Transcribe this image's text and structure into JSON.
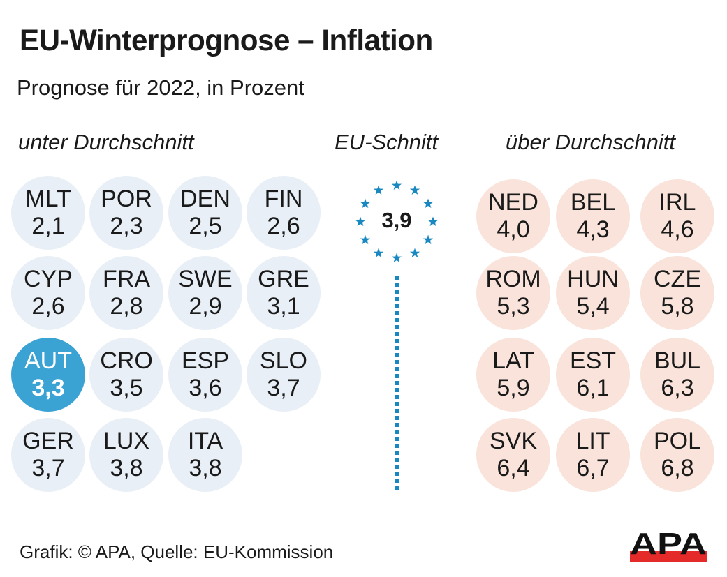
{
  "header": {
    "title": "EU-Winterprognose – Inflation",
    "subtitle": "Prognose für 2022, in Prozent"
  },
  "sections": {
    "below": "unter Durchschnitt",
    "eu": "EU-Schnitt",
    "above": "über Durchschnitt"
  },
  "eu_average": {
    "value": "3,9",
    "icon": "eu-stars-ring-icon"
  },
  "below": [
    {
      "code": "MLT",
      "value": "2,1"
    },
    {
      "code": "POR",
      "value": "2,3"
    },
    {
      "code": "DEN",
      "value": "2,5"
    },
    {
      "code": "FIN",
      "value": "2,6"
    },
    {
      "code": "CYP",
      "value": "2,6"
    },
    {
      "code": "FRA",
      "value": "2,8"
    },
    {
      "code": "SWE",
      "value": "2,9"
    },
    {
      "code": "GRE",
      "value": "3,1"
    },
    {
      "code": "AUT",
      "value": "3,3"
    },
    {
      "code": "CRO",
      "value": "3,5"
    },
    {
      "code": "ESP",
      "value": "3,6"
    },
    {
      "code": "SLO",
      "value": "3,7"
    },
    {
      "code": "GER",
      "value": "3,7"
    },
    {
      "code": "LUX",
      "value": "3,8"
    },
    {
      "code": "ITA",
      "value": "3,8"
    }
  ],
  "above": [
    {
      "code": "NED",
      "value": "4,0"
    },
    {
      "code": "BEL",
      "value": "4,3"
    },
    {
      "code": "IRL",
      "value": "4,6"
    },
    {
      "code": "ROM",
      "value": "5,3"
    },
    {
      "code": "HUN",
      "value": "5,4"
    },
    {
      "code": "CZE",
      "value": "5,8"
    },
    {
      "code": "LAT",
      "value": "5,9"
    },
    {
      "code": "EST",
      "value": "6,1"
    },
    {
      "code": "BUL",
      "value": "6,3"
    },
    {
      "code": "SVK",
      "value": "6,4"
    },
    {
      "code": "LIT",
      "value": "6,7"
    },
    {
      "code": "POL",
      "value": "6,8"
    }
  ],
  "footer": {
    "credit": "Grafik: © APA, Quelle: EU-Kommission",
    "logo_text": "APA"
  },
  "colors": {
    "below_circle": "#e8eff6",
    "above_circle": "#f9e3da",
    "highlight_circle": "#3aa3d4",
    "eu_blue": "#1a88c0",
    "logo_red": "#e52a2a"
  },
  "chart_data": {
    "type": "table",
    "title": "EU-Winterprognose – Inflation",
    "subtitle": "Prognose für 2022, in Prozent",
    "unit": "%",
    "eu_average": 3.9,
    "highlighted": "AUT",
    "categories": [
      "MLT",
      "POR",
      "DEN",
      "FIN",
      "CYP",
      "FRA",
      "SWE",
      "GRE",
      "AUT",
      "CRO",
      "ESP",
      "SLO",
      "GER",
      "LUX",
      "ITA",
      "NED",
      "BEL",
      "IRL",
      "ROM",
      "HUN",
      "CZE",
      "LAT",
      "EST",
      "BUL",
      "SVK",
      "LIT",
      "POL"
    ],
    "values": [
      2.1,
      2.3,
      2.5,
      2.6,
      2.6,
      2.8,
      2.9,
      3.1,
      3.3,
      3.5,
      3.6,
      3.7,
      3.7,
      3.8,
      3.8,
      4.0,
      4.3,
      4.6,
      5.3,
      5.4,
      5.8,
      5.9,
      6.1,
      6.3,
      6.4,
      6.7,
      6.8
    ],
    "groups": {
      "unter Durchschnitt": [
        "MLT",
        "POR",
        "DEN",
        "FIN",
        "CYP",
        "FRA",
        "SWE",
        "GRE",
        "AUT",
        "CRO",
        "ESP",
        "SLO",
        "GER",
        "LUX",
        "ITA"
      ],
      "über Durchschnitt": [
        "NED",
        "BEL",
        "IRL",
        "ROM",
        "HUN",
        "CZE",
        "LAT",
        "EST",
        "BUL",
        "SVK",
        "LIT",
        "POL"
      ]
    },
    "source": "Grafik: © APA, Quelle: EU-Kommission"
  }
}
